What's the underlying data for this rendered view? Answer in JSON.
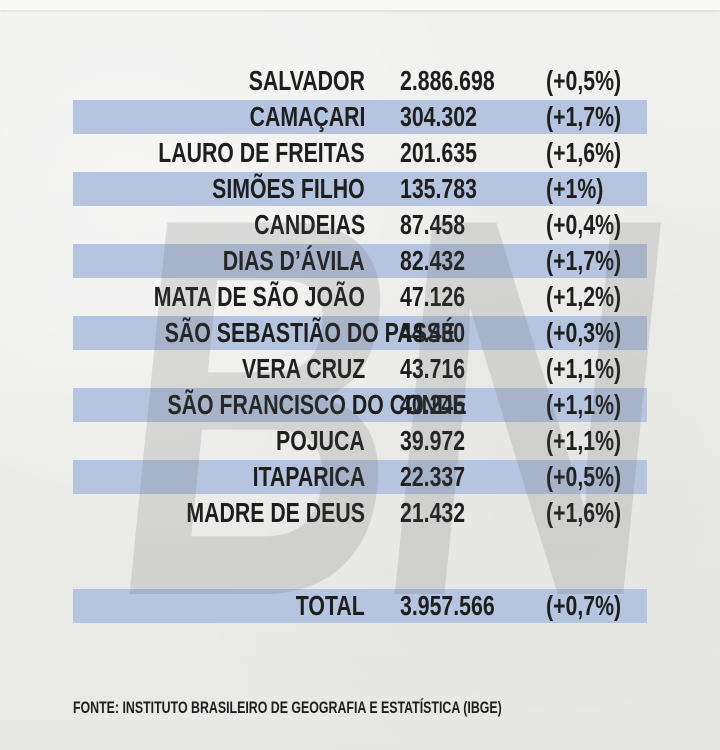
{
  "colors": {
    "bg": "#ECECEA",
    "blue": "#B6C5DF",
    "text": "#1E1E1E",
    "wm": "#5A5A5A"
  },
  "watermark": {
    "text": "BN"
  },
  "table": {
    "rows": [
      {
        "city": "SALVADOR",
        "population": "2.886.698",
        "change": "(+0,5%)",
        "highlighted": false
      },
      {
        "city": "CAMAÇARI",
        "population": "304.302",
        "change": "(+1,7%)",
        "highlighted": true
      },
      {
        "city": "LAURO DE FREITAS",
        "population": "201.635",
        "change": "(+1,6%)",
        "highlighted": false
      },
      {
        "city": "SIMÕES FILHO",
        "population": "135.783",
        "change": "(+1%)",
        "highlighted": true
      },
      {
        "city": "CANDEIAS",
        "population": "87.458",
        "change": "(+0,4%)",
        "highlighted": false
      },
      {
        "city": "DIAS D’ÁVILA",
        "population": "82.432",
        "change": "(+1,7%)",
        "highlighted": true
      },
      {
        "city": "MATA DE SÃO JOÃO",
        "population": "47.126",
        "change": "(+1,2%)",
        "highlighted": false
      },
      {
        "city": "SÃO SEBASTIÃO DO PASSÉ",
        "population": "44.430",
        "change": "(+0,3%)",
        "highlighted": true
      },
      {
        "city": "VERA CRUZ",
        "population": "43.716",
        "change": "(+1,1%)",
        "highlighted": false
      },
      {
        "city": "SÃO FRANCISCO DO CONDE",
        "population": "40.245",
        "change": "(+1,1%)",
        "highlighted": true
      },
      {
        "city": "POJUCA",
        "population": "39.972",
        "change": "(+1,1%)",
        "highlighted": false
      },
      {
        "city": "ITAPARICA",
        "population": "22.337",
        "change": "(+0,5%)",
        "highlighted": true
      },
      {
        "city": "MADRE DE DEUS",
        "population": "21.432",
        "change": "(+1,6%)",
        "highlighted": false
      }
    ],
    "total_row": {
      "label": "TOTAL",
      "population": "3.957.566",
      "change": "(+0,7%)",
      "highlighted": true
    }
  },
  "footer": {
    "source": "FONTE: INSTITUTO BRASILEIRO DE GEOGRAFIA E ESTATÍSTICA (IBGE)"
  },
  "chart_data": {
    "type": "table",
    "categories": [
      "SALVADOR",
      "CAMAÇARI",
      "LAURO DE FREITAS",
      "SIMÕES FILHO",
      "CANDEIAS",
      "DIAS D’ÁVILA",
      "MATA DE SÃO JOÃO",
      "SÃO SEBASTIÃO DO PASSÉ",
      "VERA CRUZ",
      "SÃO FRANCISCO DO CONDE",
      "POJUCA",
      "ITAPARICA",
      "MADRE DE DEUS"
    ],
    "series": [
      {
        "name": "population",
        "values": [
          2886698,
          304302,
          201635,
          135783,
          87458,
          82432,
          47126,
          44430,
          43716,
          40245,
          39972,
          22337,
          21432
        ]
      },
      {
        "name": "growth_percent",
        "values": [
          0.5,
          1.7,
          1.6,
          1.0,
          0.4,
          1.7,
          1.2,
          0.3,
          1.1,
          1.1,
          1.1,
          0.5,
          1.6
        ]
      }
    ],
    "total": {
      "label": "TOTAL",
      "population": 3957566,
      "growth_percent": 0.7
    },
    "title": "",
    "source": "FONTE: INSTITUTO BRASILEIRO DE GEOGRAFIA E ESTATÍSTICA (IBGE)"
  }
}
